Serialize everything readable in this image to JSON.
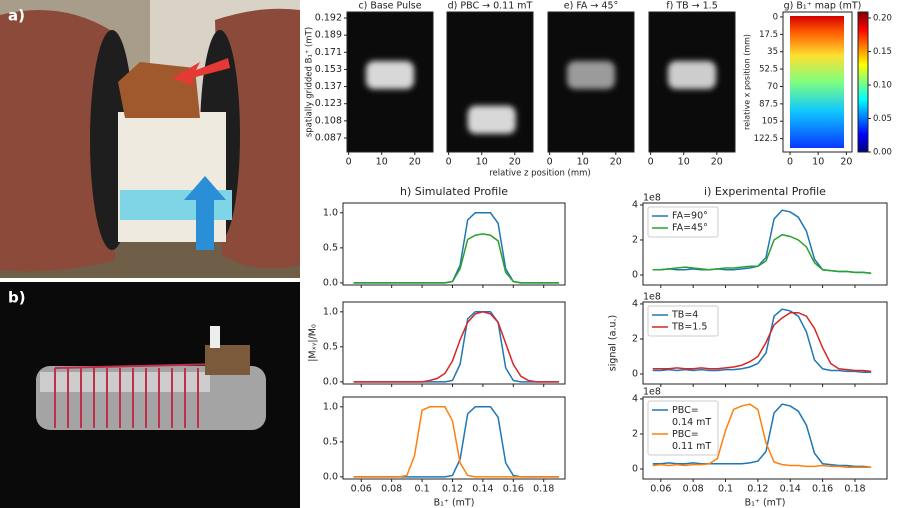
{
  "figure_labels": [
    "a)",
    "b)"
  ],
  "chart_data": [
    {
      "type": "heatmap",
      "title": "c) Base Pulse",
      "ylabel": "spatially gridded B₁⁺ (mT)",
      "xlim": [
        -0.5,
        25.5
      ],
      "xticks": [
        0,
        10,
        20
      ],
      "yticks": [
        0.192,
        0.189,
        0.171,
        0.153,
        0.137,
        0.123,
        0.108,
        0.087
      ]
    },
    {
      "type": "heatmap",
      "title": "d) PBC → 0.11 mT",
      "xlabel": "relative z position (mm)",
      "xlim": [
        -0.5,
        25.5
      ],
      "xticks": [
        0,
        10,
        20
      ]
    },
    {
      "type": "heatmap",
      "title": "e) FA → 45°",
      "xlim": [
        -0.5,
        25.5
      ],
      "xticks": [
        0,
        10,
        20
      ]
    },
    {
      "type": "heatmap",
      "title": "f) TB → 1.5",
      "xlim": [
        -0.5,
        25.5
      ],
      "xticks": [
        0,
        10,
        20
      ]
    },
    {
      "type": "colormap",
      "title": "g) B₁⁺ map (mT)",
      "ylabel": "relative x position (mm)",
      "xlim": [
        -2.5,
        22
      ],
      "xticks": [
        0,
        10,
        20
      ],
      "ylim": [
        -5,
        136
      ],
      "y_inverted": true,
      "yticks": [
        0,
        17.5,
        35,
        52.5,
        70,
        87.5,
        105,
        122.5
      ],
      "clim": [
        0,
        0.209
      ],
      "cticks": [
        {
          "value": 0,
          "label": "0.00"
        },
        {
          "value": 0.05,
          "label": "0.05"
        },
        {
          "value": 0.1,
          "label": "0.10"
        },
        {
          "value": 0.15,
          "label": "0.15"
        },
        {
          "value": 0.2,
          "label": "0.20"
        }
      ]
    },
    {
      "type": "line",
      "title": "h) Simulated Profile",
      "xlim": [
        0.048,
        0.194
      ],
      "ylim": [
        -0.03,
        1.14
      ],
      "xticks": [
        0.06,
        0.08,
        0.1,
        0.12,
        0.14,
        0.16,
        0.18
      ],
      "xtick_labels": false,
      "yticks": [
        {
          "value": 0,
          "label": "0.0"
        },
        0.5,
        {
          "value": 1,
          "label": "1.0"
        }
      ],
      "x": [
        0.055,
        0.06,
        0.065,
        0.07,
        0.075,
        0.08,
        0.085,
        0.09,
        0.095,
        0.1,
        0.105,
        0.11,
        0.115,
        0.12,
        0.125,
        0.13,
        0.135,
        0.14,
        0.145,
        0.15,
        0.155,
        0.16,
        0.165,
        0.17,
        0.175,
        0.18,
        0.185,
        0.19
      ],
      "series": [
        {
          "color": "#1f77b4",
          "values": [
            0,
            0,
            0,
            0,
            0,
            0,
            0,
            0,
            0,
            0,
            0,
            0,
            0,
            0.02,
            0.25,
            0.9,
            1,
            1,
            1,
            0.85,
            0.2,
            0.02,
            0,
            0,
            0,
            0,
            0,
            0
          ]
        },
        {
          "color": "#2ca02c",
          "values": [
            0,
            0,
            0,
            0,
            0,
            0,
            0,
            0,
            0,
            0,
            0,
            0,
            0,
            0.02,
            0.2,
            0.62,
            0.68,
            0.7,
            0.68,
            0.6,
            0.15,
            0.02,
            0,
            0,
            0,
            0,
            0,
            0
          ]
        }
      ]
    },
    {
      "type": "line",
      "ylabel": "|Mₓᵧ|/M₀",
      "xlim": [
        0.048,
        0.194
      ],
      "ylim": [
        -0.03,
        1.14
      ],
      "xticks": [
        0.06,
        0.08,
        0.1,
        0.12,
        0.14,
        0.16,
        0.18
      ],
      "xtick_labels": false,
      "yticks": [
        {
          "value": 0,
          "label": "0.0"
        },
        0.5,
        {
          "value": 1,
          "label": "1.0"
        }
      ],
      "x": [
        0.055,
        0.06,
        0.065,
        0.07,
        0.075,
        0.08,
        0.085,
        0.09,
        0.095,
        0.1,
        0.105,
        0.11,
        0.115,
        0.12,
        0.125,
        0.13,
        0.135,
        0.14,
        0.145,
        0.15,
        0.155,
        0.16,
        0.165,
        0.17,
        0.175,
        0.18,
        0.185,
        0.19
      ],
      "series": [
        {
          "color": "#1f77b4",
          "values": [
            0,
            0,
            0,
            0,
            0,
            0,
            0,
            0,
            0,
            0,
            0,
            0,
            0,
            0.02,
            0.25,
            0.9,
            1,
            1,
            1,
            0.85,
            0.2,
            0.02,
            0,
            0,
            0,
            0,
            0,
            0
          ]
        },
        {
          "color": "#d62728",
          "values": [
            0,
            0,
            0,
            0,
            0,
            0,
            0,
            0,
            0,
            0,
            0.02,
            0.05,
            0.12,
            0.3,
            0.6,
            0.85,
            0.97,
            1,
            0.97,
            0.85,
            0.55,
            0.25,
            0.08,
            0.02,
            0,
            0,
            0,
            0
          ]
        }
      ]
    },
    {
      "type": "line",
      "xlabel": "B₁⁺ (mT)",
      "xlim": [
        0.048,
        0.194
      ],
      "ylim": [
        -0.03,
        1.14
      ],
      "xticks": [
        0.06,
        0.08,
        0.1,
        0.12,
        0.14,
        0.16,
        0.18
      ],
      "yticks": [
        {
          "value": 0,
          "label": "0.0"
        },
        0.5,
        {
          "value": 1,
          "label": "1.0"
        }
      ],
      "x": [
        0.055,
        0.06,
        0.065,
        0.07,
        0.075,
        0.08,
        0.085,
        0.09,
        0.095,
        0.1,
        0.105,
        0.11,
        0.115,
        0.12,
        0.125,
        0.13,
        0.135,
        0.14,
        0.145,
        0.15,
        0.155,
        0.16,
        0.165,
        0.17,
        0.175,
        0.18,
        0.185,
        0.19
      ],
      "series": [
        {
          "color": "#1f77b4",
          "values": [
            0,
            0,
            0,
            0,
            0,
            0,
            0,
            0,
            0,
            0,
            0,
            0,
            0,
            0.02,
            0.25,
            0.9,
            1,
            1,
            1,
            0.85,
            0.2,
            0.02,
            0,
            0,
            0,
            0,
            0,
            0
          ]
        },
        {
          "color": "#ff7f0e",
          "values": [
            0,
            0,
            0,
            0,
            0,
            0,
            0,
            0.02,
            0.3,
            0.95,
            1,
            1,
            1,
            0.8,
            0.2,
            0.02,
            0,
            0,
            0,
            0,
            0,
            0,
            0,
            0,
            0,
            0,
            0,
            0
          ]
        }
      ]
    },
    {
      "type": "line",
      "title": "i) Experimental Profile",
      "offset_label": "1e8",
      "legend": "upper left",
      "xlim": [
        0.049,
        0.1998
      ],
      "ylim": [
        -0.57,
        4.11
      ],
      "xticks": [
        0.06,
        0.08,
        0.1,
        0.12,
        0.14,
        0.16,
        0.18
      ],
      "xtick_labels": false,
      "yticks": [
        0,
        2,
        4
      ],
      "x": [
        0.055,
        0.06,
        0.065,
        0.07,
        0.075,
        0.08,
        0.085,
        0.09,
        0.095,
        0.1,
        0.105,
        0.11,
        0.115,
        0.12,
        0.125,
        0.13,
        0.135,
        0.14,
        0.145,
        0.15,
        0.155,
        0.16,
        0.165,
        0.17,
        0.175,
        0.18,
        0.185,
        0.19
      ],
      "series": [
        {
          "name": "FA=90°",
          "color": "#1f77b4",
          "values": [
            0.3,
            0.3,
            0.35,
            0.3,
            0.3,
            0.35,
            0.3,
            0.3,
            0.35,
            0.3,
            0.3,
            0.35,
            0.4,
            0.5,
            1.0,
            3.2,
            3.7,
            3.6,
            3.3,
            2.5,
            0.9,
            0.3,
            0.25,
            0.2,
            0.2,
            0.15,
            0.15,
            0.1
          ]
        },
        {
          "name": "FA=45°",
          "color": "#2ca02c",
          "values": [
            0.3,
            0.3,
            0.35,
            0.4,
            0.45,
            0.4,
            0.35,
            0.3,
            0.35,
            0.4,
            0.4,
            0.45,
            0.5,
            0.5,
            0.8,
            2.0,
            2.3,
            2.2,
            2.0,
            1.6,
            0.7,
            0.3,
            0.25,
            0.2,
            0.2,
            0.15,
            0.15,
            0.1
          ]
        }
      ]
    },
    {
      "type": "line",
      "ylabel": "signal (a.u.)",
      "offset_label": "1e8",
      "legend": "upper left",
      "xlim": [
        0.049,
        0.1998
      ],
      "ylim": [
        -0.57,
        4.11
      ],
      "xticks": [
        0.06,
        0.08,
        0.1,
        0.12,
        0.14,
        0.16,
        0.18
      ],
      "xtick_labels": false,
      "yticks": [
        0,
        2,
        4
      ],
      "x": [
        0.055,
        0.06,
        0.065,
        0.07,
        0.075,
        0.08,
        0.085,
        0.09,
        0.095,
        0.1,
        0.105,
        0.11,
        0.115,
        0.12,
        0.125,
        0.13,
        0.135,
        0.14,
        0.145,
        0.15,
        0.155,
        0.16,
        0.165,
        0.17,
        0.175,
        0.18,
        0.185,
        0.19
      ],
      "series": [
        {
          "name": "TB=4",
          "color": "#1f77b4",
          "values": [
            0.2,
            0.2,
            0.25,
            0.2,
            0.25,
            0.2,
            0.25,
            0.2,
            0.2,
            0.25,
            0.25,
            0.3,
            0.4,
            0.6,
            1.2,
            3.3,
            3.7,
            3.6,
            3.3,
            2.4,
            0.8,
            0.3,
            0.2,
            0.2,
            0.15,
            0.15,
            0.1,
            0.1
          ]
        },
        {
          "name": "TB=1.5",
          "color": "#d62728",
          "values": [
            0.3,
            0.3,
            0.3,
            0.35,
            0.3,
            0.3,
            0.35,
            0.3,
            0.3,
            0.35,
            0.4,
            0.5,
            0.7,
            1.0,
            1.8,
            2.8,
            3.2,
            3.5,
            3.5,
            3.3,
            2.6,
            1.5,
            0.6,
            0.3,
            0.25,
            0.2,
            0.2,
            0.15
          ]
        }
      ]
    },
    {
      "type": "line",
      "xlabel": "B₁⁺ (mT)",
      "offset_label": "1e8",
      "legend": "upper left",
      "xlim": [
        0.049,
        0.1998
      ],
      "ylim": [
        -0.57,
        4.11
      ],
      "xticks": [
        0.06,
        0.08,
        0.1,
        0.12,
        0.14,
        0.16,
        0.18
      ],
      "yticks": [
        0,
        2,
        4
      ],
      "x": [
        0.055,
        0.06,
        0.065,
        0.07,
        0.075,
        0.08,
        0.085,
        0.09,
        0.095,
        0.1,
        0.105,
        0.11,
        0.115,
        0.12,
        0.125,
        0.13,
        0.135,
        0.14,
        0.145,
        0.15,
        0.155,
        0.16,
        0.165,
        0.17,
        0.175,
        0.18,
        0.185,
        0.19
      ],
      "series": [
        {
          "name": "PBC=\n0.14 mT",
          "color": "#1f77b4",
          "values": [
            0.3,
            0.3,
            0.35,
            0.3,
            0.3,
            0.35,
            0.3,
            0.3,
            0.3,
            0.3,
            0.3,
            0.3,
            0.35,
            0.45,
            1.0,
            3.2,
            3.7,
            3.6,
            3.3,
            2.5,
            0.9,
            0.3,
            0.25,
            0.2,
            0.2,
            0.15,
            0.15,
            0.1
          ]
        },
        {
          "name": "PBC=\n0.11 mT",
          "color": "#ff7f0e",
          "values": [
            0.2,
            0.25,
            0.2,
            0.25,
            0.2,
            0.25,
            0.25,
            0.3,
            0.6,
            2.2,
            3.4,
            3.6,
            3.7,
            3.4,
            1.5,
            0.4,
            0.25,
            0.2,
            0.2,
            0.15,
            0.15,
            0.2,
            0.15,
            0.15,
            0.1,
            0.1,
            0.1,
            0.1
          ]
        }
      ]
    }
  ]
}
